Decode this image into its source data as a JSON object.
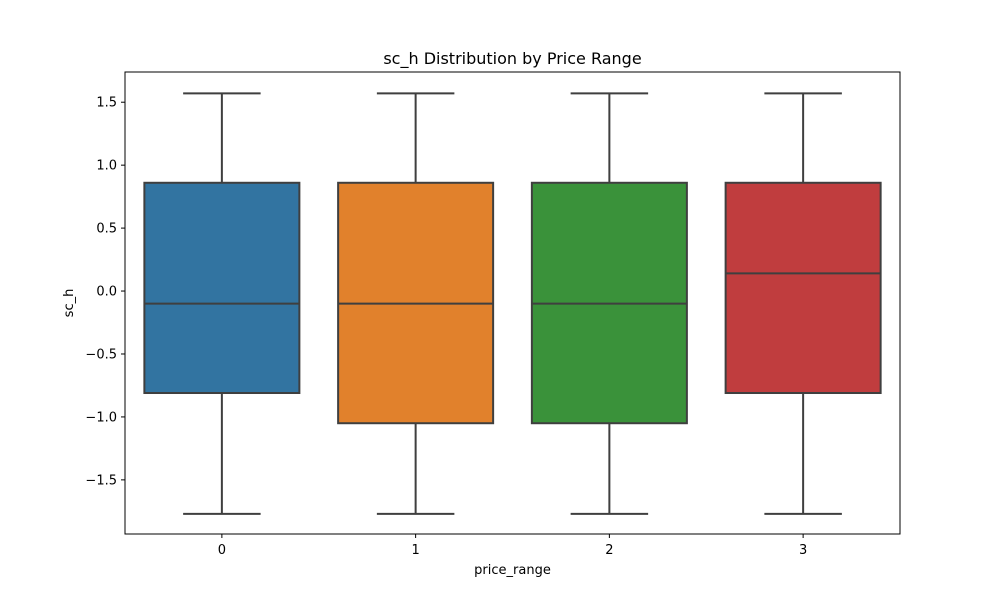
{
  "chart_data": {
    "type": "box",
    "title": "sc_h Distribution by Price Range",
    "xlabel": "price_range",
    "ylabel": "sc_h",
    "categories": [
      "0",
      "1",
      "2",
      "3"
    ],
    "ylim": [
      -1.93,
      1.74
    ],
    "yticks": [
      {
        "value": 1.5,
        "label": "1.5"
      },
      {
        "value": 1.0,
        "label": "1.0"
      },
      {
        "value": 0.5,
        "label": "0.5"
      },
      {
        "value": 0.0,
        "label": "0.0"
      },
      {
        "value": -0.5,
        "label": "−0.5"
      },
      {
        "value": -1.0,
        "label": "−1.0"
      },
      {
        "value": -1.5,
        "label": "−1.5"
      }
    ],
    "grid": false,
    "boxes": [
      {
        "category": "0",
        "whisker_low": -1.77,
        "q1": -0.81,
        "median": -0.1,
        "q3": 0.86,
        "whisker_high": 1.57,
        "color": "#3274a1"
      },
      {
        "category": "1",
        "whisker_low": -1.77,
        "q1": -1.05,
        "median": -0.1,
        "q3": 0.86,
        "whisker_high": 1.57,
        "color": "#e1812c"
      },
      {
        "category": "2",
        "whisker_low": -1.77,
        "q1": -1.05,
        "median": -0.1,
        "q3": 0.86,
        "whisker_high": 1.57,
        "color": "#3a923a"
      },
      {
        "category": "3",
        "whisker_low": -1.77,
        "q1": -0.81,
        "median": 0.14,
        "q3": 0.86,
        "whisker_high": 1.57,
        "color": "#c03d3e"
      }
    ],
    "line_color": "#3f3f3f"
  }
}
